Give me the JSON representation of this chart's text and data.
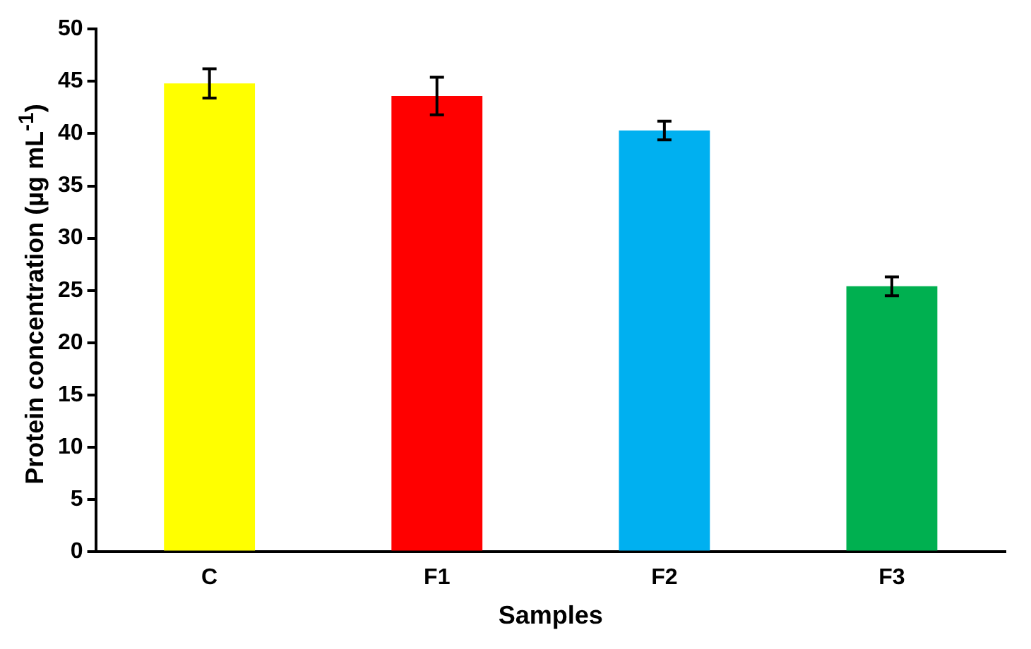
{
  "chart_data": {
    "type": "bar",
    "xlabel": "Samples",
    "ylabel": "Protein concentration (µg mL$^{-1}$)",
    "categories": [
      "C",
      "F1",
      "F2",
      "F3"
    ],
    "values": [
      44.8,
      43.6,
      40.3,
      25.4
    ],
    "errors": [
      1.4,
      1.8,
      0.9,
      0.9
    ],
    "colors": [
      "#ffff00",
      "#ff0000",
      "#00b0f0",
      "#00b050"
    ],
    "ylim": [
      0,
      50
    ],
    "yticks": [
      0,
      5,
      10,
      15,
      20,
      25,
      30,
      35,
      40,
      45,
      50
    ],
    "grid": false
  }
}
